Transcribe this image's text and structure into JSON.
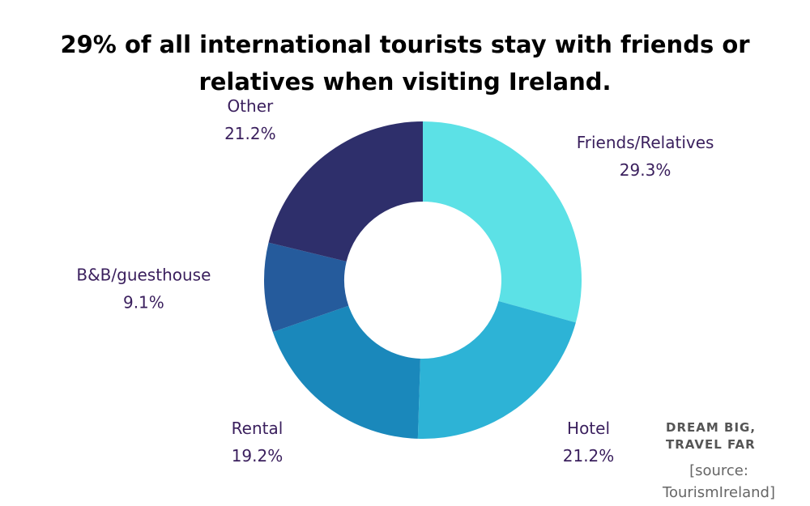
{
  "chart_data": {
    "type": "pie",
    "donut": true,
    "title": "29% of all international tourists stay with friends or relatives when visiting Ireland.",
    "categories": [
      "Friends/Relatives",
      "Hotel",
      "Rental",
      "B&B/guesthouse",
      "Other"
    ],
    "values": [
      29.3,
      21.2,
      19.2,
      9.1,
      21.2
    ],
    "value_labels": [
      "29.3%",
      "21.2%",
      "19.2%",
      "9.1%",
      "21.2%"
    ],
    "colors": [
      "#5ce1e6",
      "#2db3d6",
      "#1a88bb",
      "#255b9c",
      "#2e2f6b"
    ],
    "annotations": {
      "brand": "DREAM BIG, TRAVEL FAR",
      "source": "[source: TourismIreland]"
    }
  }
}
